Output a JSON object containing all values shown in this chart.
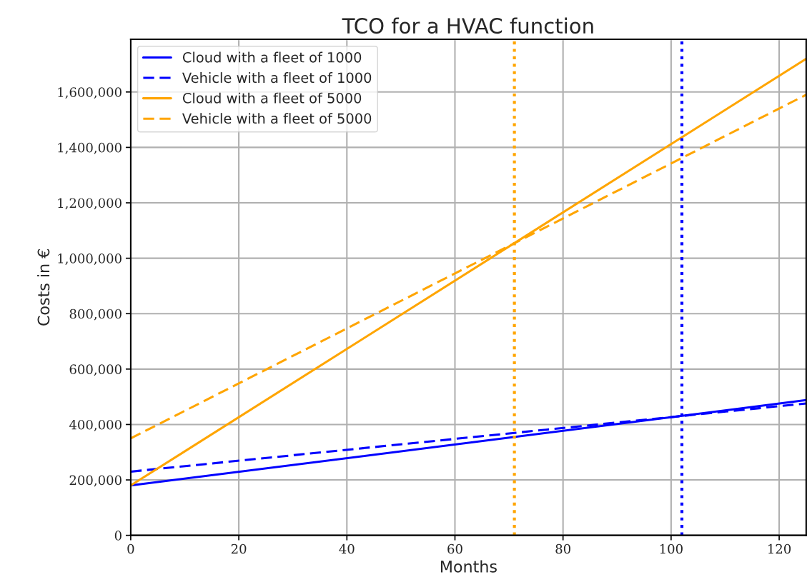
{
  "chart_data": {
    "type": "line",
    "title": "TCO for a HVAC function",
    "xlabel": "Months",
    "ylabel": "Costs in €",
    "x": [
      0,
      125
    ],
    "series": [
      {
        "name": "Cloud with a fleet of 1000",
        "color": "#0000ff",
        "line_style": "solid",
        "values": [
          180000,
          488000
        ]
      },
      {
        "name": "Vehicle with a fleet of 1000",
        "color": "#0000ff",
        "line_style": "dashed",
        "values": [
          230000,
          476000
        ]
      },
      {
        "name": "Cloud with a fleet of 5000",
        "color": "#ffa500",
        "line_style": "solid",
        "values": [
          180000,
          1720000
        ]
      },
      {
        "name": "Vehicle with a fleet of 5000",
        "color": "#ffa500",
        "line_style": "dashed",
        "values": [
          350000,
          1590000
        ]
      }
    ],
    "ref_lines": [
      {
        "axis": "x",
        "value": 71,
        "color": "#ffa500",
        "line_style": "dotted"
      },
      {
        "axis": "x",
        "value": 102,
        "color": "#0000ff",
        "line_style": "dotted"
      }
    ],
    "xlim": [
      0,
      125
    ],
    "xticks": [
      0,
      20,
      40,
      60,
      80,
      100,
      120
    ],
    "ylim": [
      0,
      1790000
    ],
    "yticks": [
      {
        "value": 0,
        "label": "0"
      },
      {
        "value": 200000,
        "label": "200,000"
      },
      {
        "value": 400000,
        "label": "400,000"
      },
      {
        "value": 600000,
        "label": "600,000"
      },
      {
        "value": 800000,
        "label": "800,000"
      },
      {
        "value": 1000000,
        "label": "1,000,000"
      },
      {
        "value": 1200000,
        "label": "1,200,000"
      },
      {
        "value": 1400000,
        "label": "1,400,000"
      },
      {
        "value": 1600000,
        "label": "1,600,000"
      }
    ],
    "grid": true,
    "legend": "top left",
    "marker": "none"
  }
}
